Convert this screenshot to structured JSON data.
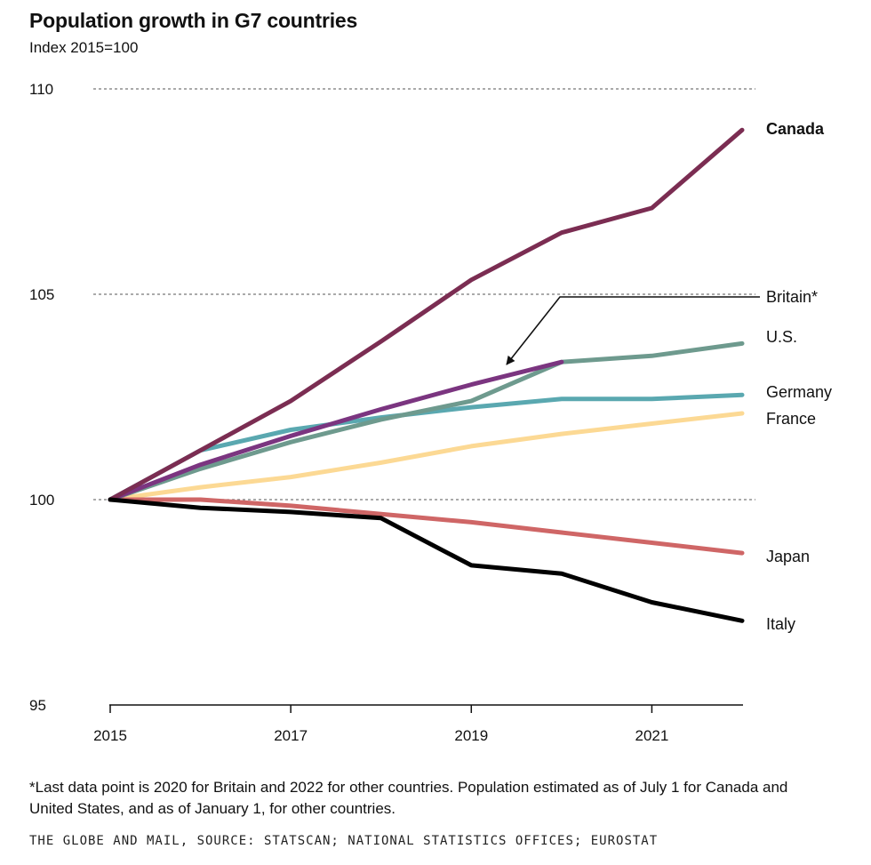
{
  "header": {
    "title": "Population growth in G7 countries",
    "subtitle": "Index 2015=100"
  },
  "footnote": "*Last data point is 2020 for Britain and 2022 for other countries. Population estimated as of July 1 for Canada and United States, and as of January 1, for other countries.",
  "source": "THE GLOBE AND MAIL, SOURCE: STATSCAN; NATIONAL STATISTICS OFFICES; EUROSTAT",
  "chart_data": {
    "type": "line",
    "title": "Population growth in G7 countries",
    "subtitle": "Index 2015=100",
    "xlabel": "",
    "ylabel": "",
    "ylim": [
      95,
      110
    ],
    "xlim": [
      2015,
      2022
    ],
    "yticks": [
      95,
      100,
      105,
      110
    ],
    "xticks": [
      2015,
      2017,
      2019,
      2021
    ],
    "grid": "horizontal dashed at 100, 105, 110",
    "legend": "direct labels at line ends (right)",
    "series": [
      {
        "name": "Canada",
        "bold": true,
        "color": "#7b2d52",
        "x": [
          2015,
          2016,
          2017,
          2018,
          2019,
          2020,
          2021,
          2022
        ],
        "values": [
          100,
          101.2,
          102.4,
          103.85,
          105.35,
          106.5,
          107.1,
          109.0
        ]
      },
      {
        "name": "Britain*",
        "color": "#7b3580",
        "x": [
          2015,
          2016,
          2017,
          2018,
          2019,
          2020
        ],
        "values": [
          100,
          100.85,
          101.55,
          102.2,
          102.8,
          103.35
        ]
      },
      {
        "name": "U.S.",
        "color": "#6e9a8e",
        "x": [
          2015,
          2016,
          2017,
          2018,
          2019,
          2020,
          2021,
          2022
        ],
        "values": [
          100,
          100.75,
          101.4,
          101.95,
          102.4,
          103.35,
          103.5,
          103.8
        ]
      },
      {
        "name": "Germany",
        "color": "#5aa8b0",
        "x": [
          2015,
          2016,
          2017,
          2018,
          2019,
          2020,
          2021,
          2022
        ],
        "values": [
          100,
          101.2,
          101.7,
          102.0,
          102.25,
          102.45,
          102.45,
          102.55
        ]
      },
      {
        "name": "France",
        "color": "#fcd994",
        "x": [
          2015,
          2016,
          2017,
          2018,
          2019,
          2020,
          2021,
          2022
        ],
        "values": [
          100,
          100.3,
          100.55,
          100.9,
          101.3,
          101.6,
          101.85,
          102.1
        ]
      },
      {
        "name": "Japan",
        "color": "#cf6666",
        "x": [
          2015,
          2016,
          2017,
          2018,
          2019,
          2020,
          2021,
          2022
        ],
        "values": [
          100,
          100.0,
          99.85,
          99.65,
          99.45,
          99.2,
          98.95,
          98.7
        ]
      },
      {
        "name": "Italy",
        "color": "#000000",
        "x": [
          2015,
          2016,
          2017,
          2018,
          2019,
          2020,
          2021,
          2022
        ],
        "values": [
          100,
          99.8,
          99.7,
          99.55,
          98.4,
          98.2,
          97.5,
          97.05
        ]
      }
    ]
  }
}
